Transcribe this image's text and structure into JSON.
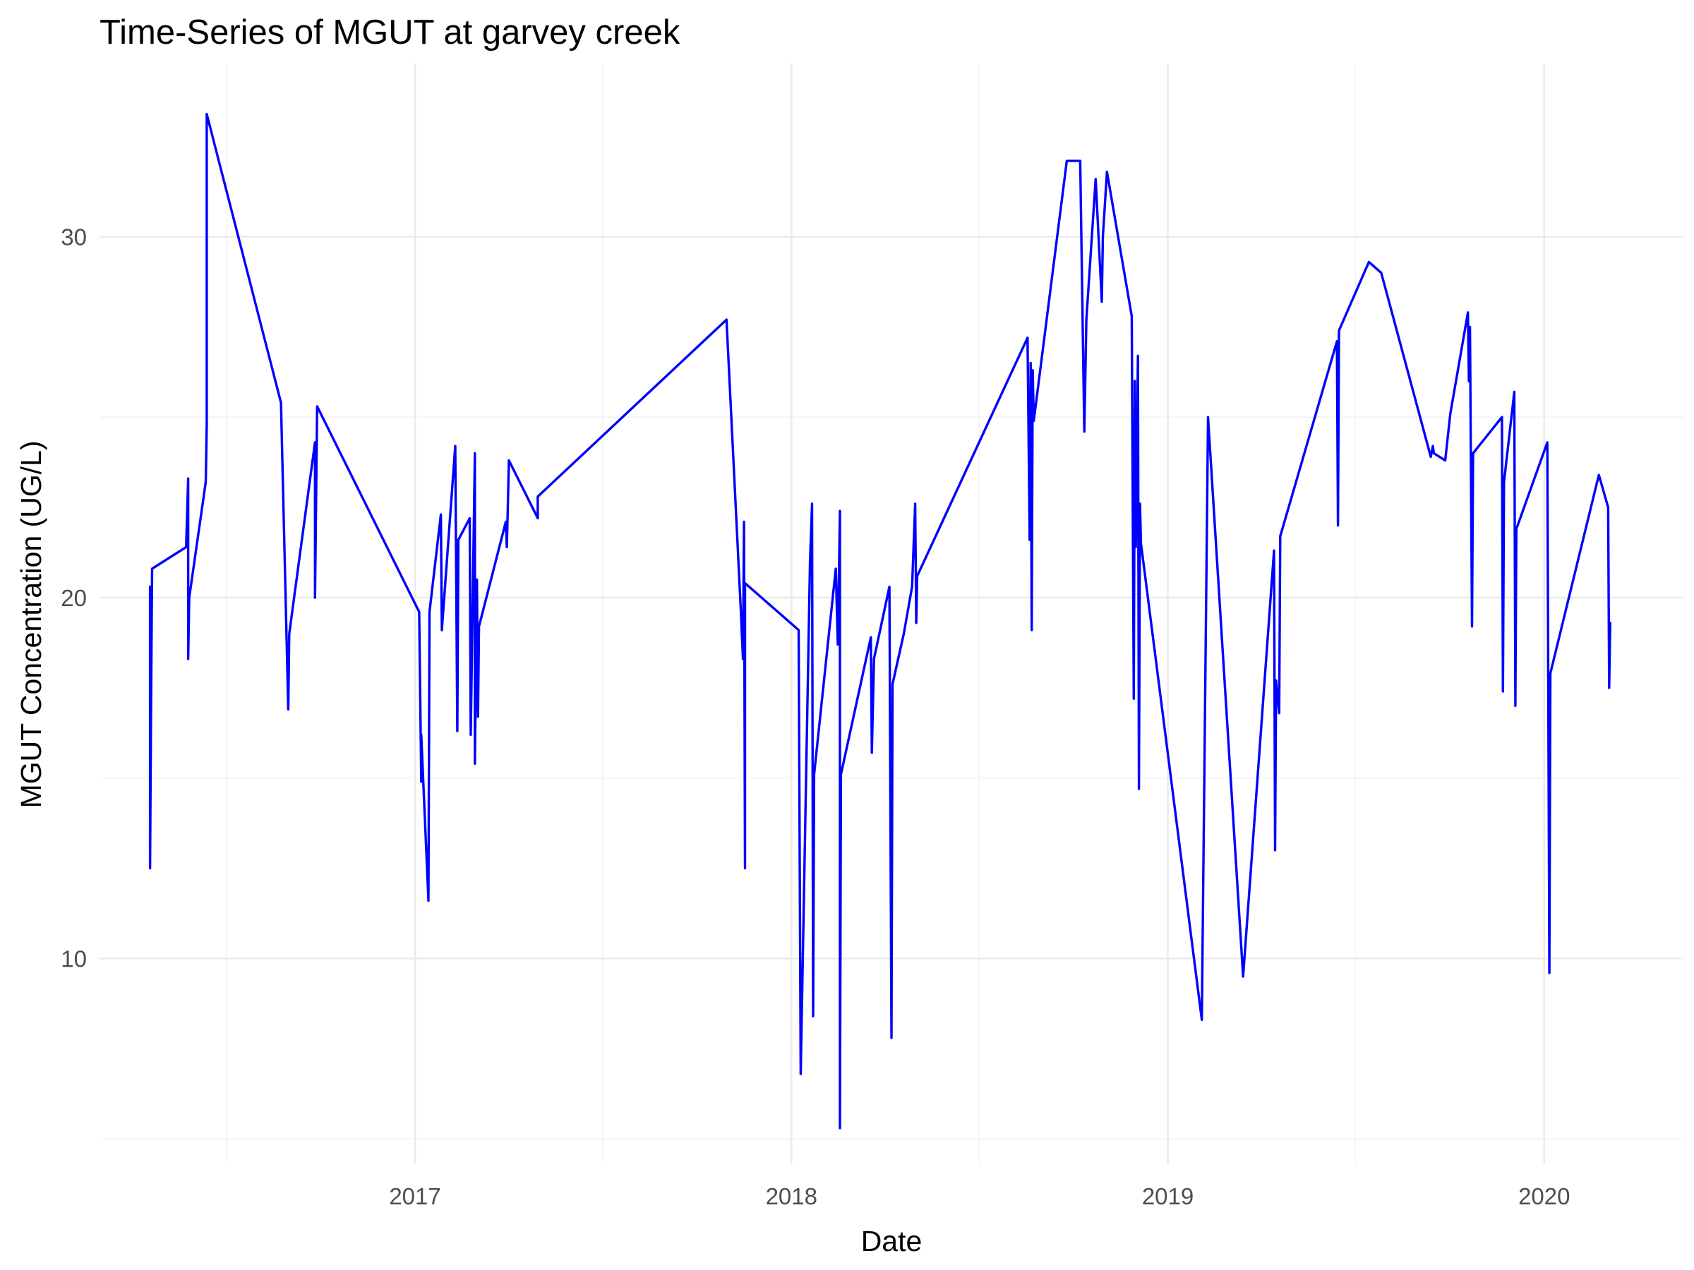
{
  "chart_data": {
    "type": "line",
    "title": "Time-Series of MGUT at garvey creek",
    "xlabel": "Date",
    "ylabel": "MGUT Concentration (UG/L)",
    "x_type": "date",
    "xlim": [
      "2016-03-01",
      "2020-05-15"
    ],
    "ylim": [
      4.3,
      34.8
    ],
    "x_ticks": [
      {
        "label": "2017",
        "value": "2017-01-01"
      },
      {
        "label": "2018",
        "value": "2018-01-01"
      },
      {
        "label": "2019",
        "value": "2019-01-01"
      },
      {
        "label": "2020",
        "value": "2020-01-01"
      }
    ],
    "x_minor_ticks": [
      "2016-07-02",
      "2017-07-02",
      "2018-07-02",
      "2019-07-02"
    ],
    "y_ticks": [
      10,
      20,
      30
    ],
    "y_minor_ticks": [
      5,
      15,
      25
    ],
    "grid": true,
    "line_color": "#0000FF",
    "series": [
      {
        "points": [
          [
            "2016-04-19",
            20.3
          ],
          [
            "2016-04-19",
            12.5
          ],
          [
            "2016-04-20",
            17.0
          ],
          [
            "2016-04-21",
            20.8
          ],
          [
            "2016-05-24",
            21.4
          ],
          [
            "2016-05-26",
            23.3
          ],
          [
            "2016-05-26",
            18.3
          ],
          [
            "2016-05-27",
            20.0
          ],
          [
            "2016-06-12",
            23.2
          ],
          [
            "2016-06-13",
            24.8
          ],
          [
            "2016-06-13",
            33.4
          ],
          [
            "2016-08-24",
            25.4
          ],
          [
            "2016-08-31",
            16.9
          ],
          [
            "2016-09-01",
            19.0
          ],
          [
            "2016-09-26",
            24.3
          ],
          [
            "2016-09-26",
            20.0
          ],
          [
            "2016-09-28",
            25.3
          ],
          [
            "2017-01-05",
            19.6
          ],
          [
            "2017-01-07",
            14.9
          ],
          [
            "2017-01-07",
            16.2
          ],
          [
            "2017-01-14",
            11.6
          ],
          [
            "2017-01-15",
            19.6
          ],
          [
            "2017-01-26",
            22.3
          ],
          [
            "2017-01-27",
            19.1
          ],
          [
            "2017-02-09",
            24.2
          ],
          [
            "2017-02-11",
            16.3
          ],
          [
            "2017-02-12",
            21.6
          ],
          [
            "2017-02-23",
            22.2
          ],
          [
            "2017-02-24",
            16.2
          ],
          [
            "2017-02-28",
            24.0
          ],
          [
            "2017-02-28",
            15.4
          ],
          [
            "2017-03-02",
            20.5
          ],
          [
            "2017-03-03",
            16.7
          ],
          [
            "2017-03-04",
            19.2
          ],
          [
            "2017-03-30",
            22.1
          ],
          [
            "2017-03-31",
            21.4
          ],
          [
            "2017-04-02",
            23.8
          ],
          [
            "2017-04-30",
            22.2
          ],
          [
            "2017-04-30",
            22.8
          ],
          [
            "2017-10-30",
            27.7
          ],
          [
            "2017-11-13",
            19.6
          ],
          [
            "2017-11-15",
            18.3
          ],
          [
            "2017-11-16",
            22.1
          ],
          [
            "2017-11-17",
            12.5
          ],
          [
            "2017-11-17",
            20.4
          ],
          [
            "2018-01-08",
            19.1
          ],
          [
            "2018-01-10",
            6.8
          ],
          [
            "2018-01-19",
            21.0
          ],
          [
            "2018-01-21",
            22.6
          ],
          [
            "2018-01-22",
            8.4
          ],
          [
            "2018-01-23",
            15.1
          ],
          [
            "2018-02-13",
            20.8
          ],
          [
            "2018-02-15",
            18.7
          ],
          [
            "2018-02-17",
            22.4
          ],
          [
            "2018-02-17",
            5.3
          ],
          [
            "2018-02-18",
            15.1
          ],
          [
            "2018-03-19",
            18.9
          ],
          [
            "2018-03-20",
            15.7
          ],
          [
            "2018-03-22",
            18.3
          ],
          [
            "2018-04-06",
            20.3
          ],
          [
            "2018-04-08",
            7.8
          ],
          [
            "2018-04-09",
            17.6
          ],
          [
            "2018-04-20",
            19.0
          ],
          [
            "2018-04-28",
            20.3
          ],
          [
            "2018-05-01",
            22.6
          ],
          [
            "2018-05-02",
            19.3
          ],
          [
            "2018-05-03",
            20.6
          ],
          [
            "2018-08-18",
            27.2
          ],
          [
            "2018-08-20",
            21.6
          ],
          [
            "2018-08-21",
            26.5
          ],
          [
            "2018-08-22",
            19.1
          ],
          [
            "2018-08-23",
            26.3
          ],
          [
            "2018-08-24",
            24.9
          ],
          [
            "2018-09-25",
            32.1
          ],
          [
            "2018-10-08",
            32.1
          ],
          [
            "2018-10-12",
            24.6
          ],
          [
            "2018-10-14",
            27.7
          ],
          [
            "2018-10-23",
            31.6
          ],
          [
            "2018-10-29",
            28.2
          ],
          [
            "2018-10-30",
            30.0
          ],
          [
            "2018-11-03",
            31.8
          ],
          [
            "2018-11-27",
            27.8
          ],
          [
            "2018-11-29",
            17.2
          ],
          [
            "2018-11-30",
            26.0
          ],
          [
            "2018-12-01",
            21.4
          ],
          [
            "2018-12-03",
            26.7
          ],
          [
            "2018-12-04",
            14.7
          ],
          [
            "2018-12-05",
            22.6
          ],
          [
            "2018-12-06",
            21.5
          ],
          [
            "2019-02-03",
            8.3
          ],
          [
            "2019-02-09",
            25.0
          ],
          [
            "2019-03-15",
            9.5
          ],
          [
            "2019-04-14",
            21.3
          ],
          [
            "2019-04-15",
            13.0
          ],
          [
            "2019-04-16",
            17.7
          ],
          [
            "2019-04-19",
            16.8
          ],
          [
            "2019-04-20",
            21.7
          ],
          [
            "2019-06-14",
            27.1
          ],
          [
            "2019-06-15",
            22.0
          ],
          [
            "2019-06-16",
            27.4
          ],
          [
            "2019-07-15",
            29.3
          ],
          [
            "2019-07-27",
            29.0
          ],
          [
            "2019-09-13",
            23.9
          ],
          [
            "2019-09-15",
            24.2
          ],
          [
            "2019-09-16",
            24.0
          ],
          [
            "2019-09-27",
            23.8
          ],
          [
            "2019-10-02",
            25.1
          ],
          [
            "2019-10-19",
            27.9
          ],
          [
            "2019-10-20",
            26.0
          ],
          [
            "2019-10-21",
            27.5
          ],
          [
            "2019-10-23",
            19.2
          ],
          [
            "2019-10-24",
            24.0
          ],
          [
            "2019-11-21",
            25.0
          ],
          [
            "2019-11-22",
            17.4
          ],
          [
            "2019-11-23",
            23.2
          ],
          [
            "2019-12-03",
            25.7
          ],
          [
            "2019-12-04",
            17.0
          ],
          [
            "2019-12-05",
            21.9
          ],
          [
            "2020-01-04",
            24.3
          ],
          [
            "2020-01-06",
            9.6
          ],
          [
            "2020-01-07",
            17.9
          ],
          [
            "2020-02-23",
            23.4
          ],
          [
            "2020-03-03",
            22.5
          ],
          [
            "2020-03-04",
            17.5
          ],
          [
            "2020-03-05",
            19.3
          ]
        ]
      }
    ]
  }
}
